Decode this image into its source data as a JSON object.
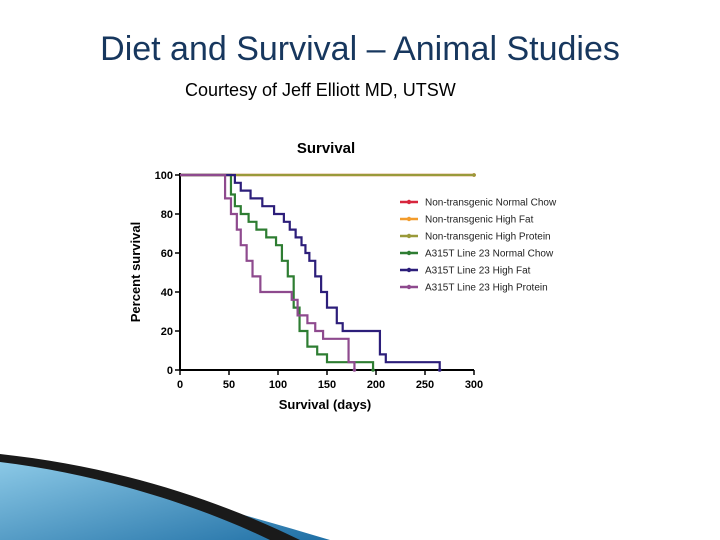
{
  "slide": {
    "title": "Diet and Survival – Animal Studies",
    "subtitle": "Courtesy of Jeff Elliott MD, UTSW"
  },
  "chart_data": {
    "type": "line",
    "step": true,
    "title": "Survival",
    "xlabel": "Survival (days)",
    "ylabel": "Percent survival",
    "xlim": [
      0,
      300
    ],
    "ylim": [
      0,
      100
    ],
    "xticks": [
      0,
      50,
      100,
      150,
      200,
      250,
      300
    ],
    "yticks": [
      0,
      20,
      40,
      60,
      80,
      100
    ],
    "grid": false,
    "legend_position": "right",
    "series": [
      {
        "name": "Non-transgenic Normal Chow",
        "color": "#d7263d",
        "points": [
          [
            0,
            100
          ],
          [
            300,
            100
          ]
        ]
      },
      {
        "name": "Non-transgenic High Fat",
        "color": "#f39c2c",
        "points": [
          [
            0,
            100
          ],
          [
            300,
            100
          ]
        ]
      },
      {
        "name": "Non-transgenic High Protein",
        "color": "#9a9a3a",
        "points": [
          [
            0,
            100
          ],
          [
            300,
            100
          ]
        ]
      },
      {
        "name": "A315T Line 23 Normal Chow",
        "color": "#2e7d32",
        "points": [
          [
            0,
            100
          ],
          [
            50,
            100
          ],
          [
            52,
            90
          ],
          [
            56,
            84
          ],
          [
            62,
            80
          ],
          [
            70,
            76
          ],
          [
            78,
            72
          ],
          [
            88,
            68
          ],
          [
            98,
            64
          ],
          [
            104,
            56
          ],
          [
            110,
            48
          ],
          [
            116,
            32
          ],
          [
            122,
            20
          ],
          [
            130,
            12
          ],
          [
            140,
            8
          ],
          [
            150,
            4
          ],
          [
            195,
            4
          ],
          [
            197,
            0
          ]
        ]
      },
      {
        "name": "A315T Line 23 High Fat",
        "color": "#2c1e7a",
        "points": [
          [
            0,
            100
          ],
          [
            52,
            100
          ],
          [
            56,
            96
          ],
          [
            62,
            92
          ],
          [
            72,
            88
          ],
          [
            84,
            84
          ],
          [
            96,
            80
          ],
          [
            106,
            76
          ],
          [
            112,
            72
          ],
          [
            118,
            68
          ],
          [
            124,
            64
          ],
          [
            128,
            60
          ],
          [
            132,
            56
          ],
          [
            138,
            48
          ],
          [
            144,
            40
          ],
          [
            150,
            32
          ],
          [
            160,
            24
          ],
          [
            166,
            20
          ],
          [
            200,
            20
          ],
          [
            204,
            8
          ],
          [
            210,
            4
          ],
          [
            262,
            4
          ],
          [
            265,
            0
          ]
        ]
      },
      {
        "name": "A315T Line 23 High Protein",
        "color": "#8e4a8e",
        "points": [
          [
            0,
            100
          ],
          [
            42,
            100
          ],
          [
            46,
            88
          ],
          [
            52,
            80
          ],
          [
            58,
            72
          ],
          [
            62,
            64
          ],
          [
            68,
            56
          ],
          [
            74,
            48
          ],
          [
            82,
            40
          ],
          [
            100,
            40
          ],
          [
            114,
            36
          ],
          [
            120,
            28
          ],
          [
            130,
            24
          ],
          [
            138,
            20
          ],
          [
            146,
            16
          ],
          [
            164,
            16
          ],
          [
            172,
            4
          ],
          [
            178,
            0
          ]
        ]
      }
    ]
  }
}
